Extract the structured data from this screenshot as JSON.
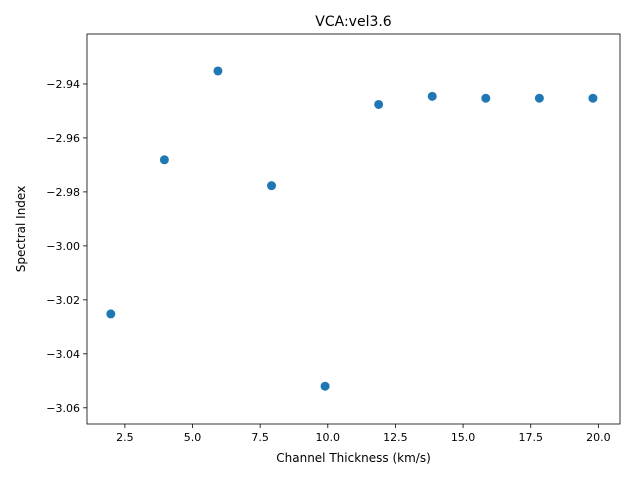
{
  "chart_data": {
    "type": "scatter",
    "title": "VCA:vel3.6",
    "xlabel": "Channel Thickness (km/s)",
    "ylabel": "Spectral Index",
    "xlim": [
      1.1,
      20.8
    ],
    "ylim": [
      -3.066,
      -2.9215
    ],
    "xticks": [
      2.5,
      5.0,
      7.5,
      10.0,
      12.5,
      15.0,
      17.5,
      20.0
    ],
    "xtick_labels": [
      "2.5",
      "5.0",
      "7.5",
      "10.0",
      "12.5",
      "15.0",
      "17.5",
      "20.0"
    ],
    "yticks": [
      -3.06,
      -3.04,
      -3.02,
      -3.0,
      -2.98,
      -2.96,
      -2.94
    ],
    "ytick_labels": [
      "−3.06",
      "−3.04",
      "−3.02",
      "−3.00",
      "−2.98",
      "−2.96",
      "−2.94"
    ],
    "grid": false,
    "color": "#1f77b4",
    "series": [
      {
        "x": [
          1.98,
          3.96,
          5.94,
          7.92,
          9.9,
          11.88,
          13.86,
          15.84,
          17.82,
          19.8
        ],
        "y": [
          -3.0252,
          -2.9681,
          -2.9352,
          -2.9777,
          -3.052,
          -2.9476,
          -2.9446,
          -2.9453,
          -2.9453,
          -2.9453
        ]
      }
    ]
  }
}
